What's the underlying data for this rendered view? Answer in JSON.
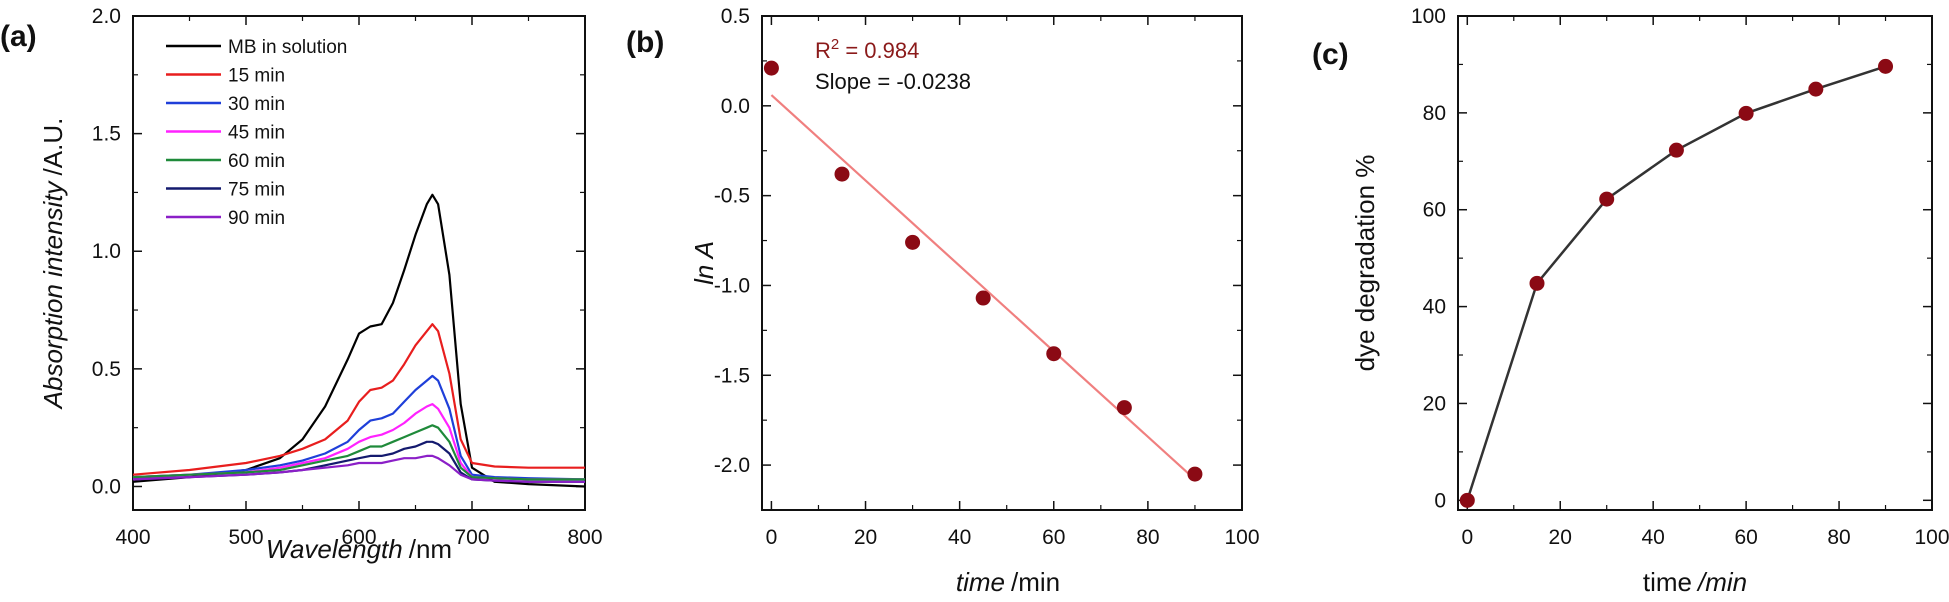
{
  "chart_data": [
    {
      "panel_label": "(a)",
      "type": "line",
      "xlabel_italic": "Wavelength",
      "xlabel_unit": "/nm",
      "ylabel_italic": "Absorption intensity",
      "ylabel_unit": "/A.U.",
      "xlim": [
        400,
        800
      ],
      "ylim": [
        -0.1,
        2.0
      ],
      "xticks": [
        400,
        500,
        600,
        700,
        800
      ],
      "xtick_labels": [
        "400",
        "500",
        "600",
        "700",
        "800"
      ],
      "yticks": [
        0.0,
        0.5,
        1.0,
        1.5,
        2.0
      ],
      "ytick_labels": [
        "0.0",
        "0.5",
        "1.0",
        "1.5",
        "2.0"
      ],
      "legend_position": "top-left",
      "series": [
        {
          "name": "MB in solution",
          "color": "#000000",
          "x": [
            400,
            450,
            500,
            530,
            550,
            570,
            590,
            600,
            610,
            620,
            630,
            640,
            650,
            660,
            665,
            670,
            680,
            690,
            700,
            720,
            750,
            800
          ],
          "y": [
            0.02,
            0.04,
            0.07,
            0.12,
            0.2,
            0.34,
            0.54,
            0.65,
            0.68,
            0.69,
            0.78,
            0.92,
            1.07,
            1.2,
            1.24,
            1.2,
            0.9,
            0.35,
            0.08,
            0.02,
            0.01,
            0.0
          ]
        },
        {
          "name": "15 min",
          "color": "#e81e1e",
          "x": [
            400,
            450,
            500,
            530,
            550,
            570,
            590,
            600,
            610,
            620,
            630,
            640,
            650,
            660,
            665,
            670,
            680,
            690,
            700,
            720,
            750,
            800
          ],
          "y": [
            0.05,
            0.07,
            0.1,
            0.13,
            0.16,
            0.2,
            0.28,
            0.36,
            0.41,
            0.42,
            0.45,
            0.52,
            0.6,
            0.66,
            0.69,
            0.66,
            0.48,
            0.2,
            0.1,
            0.085,
            0.08,
            0.08
          ]
        },
        {
          "name": "30 min",
          "color": "#1f3fd9",
          "x": [
            400,
            450,
            500,
            530,
            550,
            570,
            590,
            600,
            610,
            620,
            630,
            640,
            650,
            660,
            665,
            670,
            680,
            690,
            700,
            720,
            750,
            800
          ],
          "y": [
            0.04,
            0.05,
            0.07,
            0.09,
            0.11,
            0.14,
            0.19,
            0.24,
            0.28,
            0.29,
            0.31,
            0.36,
            0.41,
            0.45,
            0.47,
            0.45,
            0.33,
            0.13,
            0.05,
            0.04,
            0.035,
            0.03
          ]
        },
        {
          "name": "45 min",
          "color": "#ff22ff",
          "x": [
            400,
            450,
            500,
            530,
            550,
            570,
            590,
            600,
            610,
            620,
            630,
            640,
            650,
            660,
            665,
            670,
            680,
            690,
            700,
            720,
            750,
            800
          ],
          "y": [
            0.04,
            0.05,
            0.06,
            0.08,
            0.1,
            0.12,
            0.16,
            0.19,
            0.21,
            0.22,
            0.24,
            0.27,
            0.31,
            0.34,
            0.35,
            0.33,
            0.25,
            0.1,
            0.04,
            0.035,
            0.03,
            0.03
          ]
        },
        {
          "name": "60 min",
          "color": "#1f8a3a",
          "x": [
            400,
            450,
            500,
            530,
            550,
            570,
            590,
            600,
            610,
            620,
            630,
            640,
            650,
            660,
            665,
            670,
            680,
            690,
            700,
            720,
            750,
            800
          ],
          "y": [
            0.04,
            0.05,
            0.06,
            0.07,
            0.09,
            0.11,
            0.13,
            0.15,
            0.17,
            0.17,
            0.19,
            0.21,
            0.23,
            0.25,
            0.26,
            0.25,
            0.19,
            0.08,
            0.04,
            0.035,
            0.03,
            0.03
          ]
        },
        {
          "name": "75 min",
          "color": "#141a6e",
          "x": [
            400,
            450,
            500,
            530,
            550,
            570,
            590,
            600,
            610,
            620,
            630,
            640,
            650,
            660,
            665,
            670,
            680,
            690,
            700,
            720,
            750,
            800
          ],
          "y": [
            0.03,
            0.04,
            0.05,
            0.06,
            0.07,
            0.09,
            0.11,
            0.12,
            0.13,
            0.13,
            0.14,
            0.16,
            0.17,
            0.19,
            0.19,
            0.18,
            0.14,
            0.06,
            0.03,
            0.025,
            0.02,
            0.02
          ]
        },
        {
          "name": "90 min",
          "color": "#8b1fc7",
          "x": [
            400,
            450,
            500,
            530,
            550,
            570,
            590,
            600,
            610,
            620,
            630,
            640,
            650,
            660,
            665,
            670,
            680,
            690,
            700,
            720,
            750,
            800
          ],
          "y": [
            0.03,
            0.04,
            0.05,
            0.06,
            0.07,
            0.08,
            0.09,
            0.1,
            0.1,
            0.1,
            0.11,
            0.12,
            0.12,
            0.13,
            0.13,
            0.12,
            0.09,
            0.05,
            0.03,
            0.025,
            0.02,
            0.02
          ]
        }
      ]
    },
    {
      "panel_label": "(b)",
      "type": "scatter",
      "xlabel_italic": "time",
      "xlabel_unit": "/min",
      "ylabel_italic": "ln A",
      "xlim": [
        -2,
        100
      ],
      "ylim": [
        -2.25,
        0.5
      ],
      "xticks": [
        0,
        20,
        40,
        60,
        80,
        100
      ],
      "xtick_labels": [
        "0",
        "20",
        "40",
        "60",
        "80",
        "100"
      ],
      "yticks": [
        0.5,
        0.0,
        -0.5,
        -1.0,
        -1.5,
        -2.0
      ],
      "ytick_labels": [
        "0.5",
        "0.0",
        "-0.5",
        "-1.0",
        "-1.5",
        "-2.0"
      ],
      "points_color": "#8b0a14",
      "fit_color": "#f07f7f",
      "annotation_r2_prefix": "R",
      "annotation_r2_sup": "2",
      "annotation_r2_value": " = 0.984",
      "annotation_slope": "Slope = -0.0238",
      "annotation_color": "#8b1a1a",
      "x": [
        0,
        15,
        30,
        45,
        60,
        75,
        90
      ],
      "y": [
        0.21,
        -0.38,
        -0.76,
        -1.07,
        -1.38,
        -1.68,
        -2.05
      ],
      "fit": {
        "x": [
          0,
          90
        ],
        "y": [
          0.06,
          -2.08
        ]
      }
    },
    {
      "panel_label": "(c)",
      "type": "line",
      "xlabel": "time",
      "xlabel_unit_italic": "/min",
      "ylabel": "dye degradation %",
      "xlim": [
        -2,
        100
      ],
      "ylim": [
        -2,
        100
      ],
      "xticks": [
        0,
        20,
        40,
        60,
        80,
        100
      ],
      "xtick_labels": [
        "0",
        "20",
        "40",
        "60",
        "80",
        "100"
      ],
      "yticks": [
        0,
        20,
        40,
        60,
        80,
        100
      ],
      "ytick_labels": [
        "0",
        "20",
        "40",
        "60",
        "80",
        "100"
      ],
      "line_color": "#333333",
      "points_color": "#8b0a14",
      "x": [
        0,
        15,
        30,
        45,
        60,
        75,
        90
      ],
      "y": [
        0,
        44.8,
        62.2,
        72.3,
        79.9,
        84.9,
        89.6
      ]
    }
  ]
}
